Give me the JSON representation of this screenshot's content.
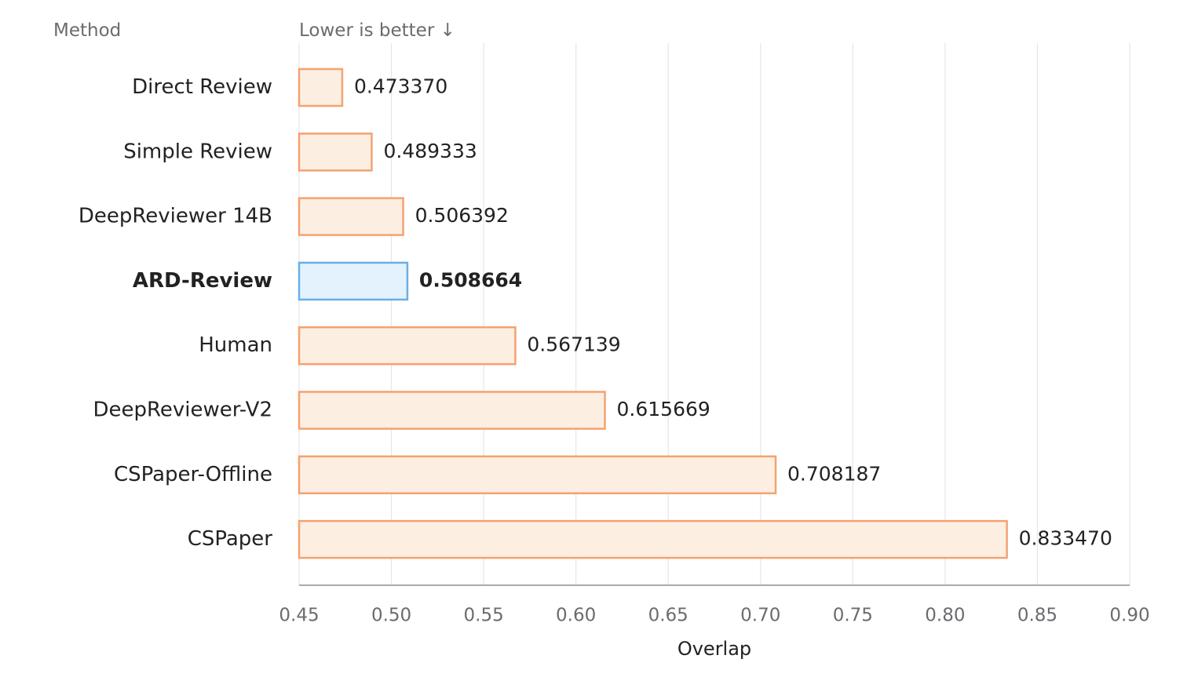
{
  "chart_data": {
    "type": "bar",
    "orientation": "horizontal",
    "header_left": "Method",
    "header_right": "Lower is better ↓",
    "xlabel": "Overlap",
    "xlim": [
      0.45,
      0.9
    ],
    "xticks": [
      "0.45",
      "0.50",
      "0.55",
      "0.60",
      "0.65",
      "0.70",
      "0.75",
      "0.80",
      "0.85",
      "0.90"
    ],
    "grid": "vertical",
    "categories": [
      "Direct Review",
      "Simple Review",
      "DeepReviewer 14B",
      "ARD-Review",
      "Human",
      "DeepReviewer-V2",
      "CSPaper-Offline",
      "CSPaper"
    ],
    "values": [
      0.47337,
      0.489333,
      0.506392,
      0.508664,
      0.567139,
      0.615669,
      0.708187,
      0.83347
    ],
    "value_labels": [
      "0.473370",
      "0.489333",
      "0.506392",
      "0.508664",
      "0.567139",
      "0.615669",
      "0.708187",
      "0.833470"
    ],
    "highlight": "ARD-Review",
    "colors": {
      "bar_fill": "#fdeee2",
      "bar_stroke": "#f4a26f",
      "highlight_fill": "#e3f2fd",
      "highlight_stroke": "#6aafe6",
      "grid": "#e6e6e6",
      "axis": "#9e9ea6",
      "text_dark": "#222222",
      "text_muted": "#6b6b70"
    }
  }
}
